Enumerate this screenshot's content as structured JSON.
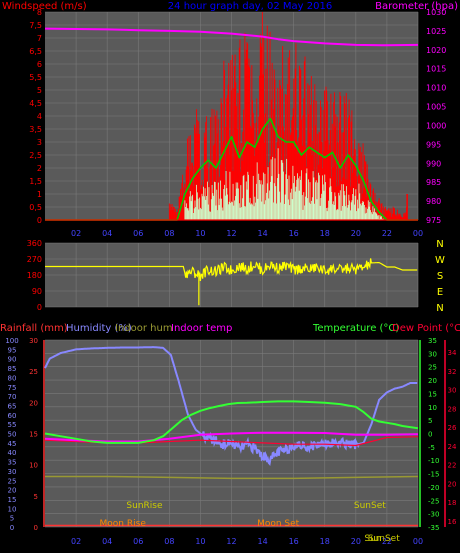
{
  "colors": {
    "background": "#000000",
    "plot_bg": "#5a5a5a",
    "grid": "#7a7a7a",
    "windspeed": "#ff0000",
    "gust": "#ff0000",
    "avg_wind": "#00cc00",
    "wind_light": "#ccffcc",
    "barometer": "#ff00ff",
    "direction": "#ffff00",
    "rainfall": "#ff3333",
    "humidity": "#8888ff",
    "indoor_hum": "#999933",
    "indoor_temp": "#ff00ff",
    "temperature": "#33ff33",
    "dew_point": "#ff0033",
    "title": "#0000ff",
    "astro": "#cccc00",
    "moon": "#ff8800",
    "x_ticks": "#4444ff"
  },
  "chart_data": [
    {
      "type": "line",
      "title": "24 hour graph day,  02 May 2016",
      "left_label": "Windspeed (m/s)",
      "right_label": "Barometer (hpa)",
      "x_ticks": [
        "02",
        "04",
        "06",
        "08",
        "10",
        "12",
        "14",
        "16",
        "18",
        "20",
        "22",
        "00"
      ],
      "y_left_ticks": [
        "8",
        "7,5",
        "7",
        "6,5",
        "6",
        "5,5",
        "5",
        "4,5",
        "4",
        "3,5",
        "3",
        "2,5",
        "2",
        "1,5",
        "1",
        "0,5",
        "0"
      ],
      "y_right_ticks": [
        "1030",
        "1025",
        "1020",
        "1015",
        "1010",
        "1005",
        "1000",
        "995",
        "990",
        "985",
        "980",
        "975"
      ],
      "ylim_left": [
        0,
        8
      ],
      "ylim_right": [
        975,
        1030
      ],
      "series": [
        {
          "name": "Barometer",
          "axis": "right",
          "color": "#ff00ff",
          "x": [
            0,
            2,
            4,
            6,
            8,
            10,
            12,
            14,
            15,
            16,
            18,
            20,
            22,
            24
          ],
          "values": [
            1025.6,
            1025.5,
            1025.4,
            1025.2,
            1025.0,
            1024.8,
            1024.3,
            1023.5,
            1022.8,
            1022.3,
            1021.7,
            1021.3,
            1021.2,
            1021.3
          ]
        },
        {
          "name": "Gust",
          "axis": "left",
          "color": "#ff0000",
          "x": [
            0,
            7.9,
            8.0,
            8.5,
            9.0,
            9.5,
            10.0,
            10.5,
            11.0,
            11.5,
            12.0,
            12.5,
            13.0,
            13.5,
            14.0,
            14.5,
            15.0,
            15.5,
            16.0,
            16.5,
            17.0,
            17.5,
            18.0,
            18.5,
            19.0,
            19.5,
            20.0,
            20.5,
            21.0,
            21.5,
            22.0,
            22.5,
            23.0,
            23.3,
            23.5,
            24
          ],
          "values": [
            0,
            0,
            0.6,
            0.5,
            2.4,
            4.7,
            3.5,
            4.0,
            4.2,
            6.0,
            6.5,
            7.0,
            7.2,
            5.0,
            8.0,
            6.6,
            7.0,
            5.5,
            6.5,
            6.0,
            5.4,
            5.2,
            4.6,
            5.5,
            4.6,
            4.4,
            4.0,
            2.7,
            1.5,
            0.8,
            0.4,
            0.5,
            0.1,
            1.0,
            0.2,
            0
          ]
        },
        {
          "name": "Wind Speed",
          "axis": "left",
          "color": "#00cc00",
          "x": [
            0,
            8.5,
            9.0,
            9.5,
            10.0,
            10.5,
            11.0,
            11.5,
            12.0,
            12.5,
            13.0,
            13.5,
            14.0,
            14.5,
            15.0,
            15.5,
            16.0,
            16.5,
            17.0,
            17.5,
            18.0,
            18.5,
            19.0,
            19.5,
            20.0,
            20.5,
            21.0,
            21.5,
            22.0,
            24
          ],
          "values": [
            0,
            0,
            1.0,
            1.6,
            2.0,
            2.3,
            2.0,
            2.6,
            3.2,
            2.4,
            3.0,
            2.8,
            3.5,
            3.9,
            3.2,
            3.0,
            3.0,
            2.5,
            2.8,
            2.6,
            2.4,
            2.6,
            2.0,
            2.5,
            2.1,
            1.5,
            0.7,
            0.3,
            0,
            0
          ]
        },
        {
          "name": "Wind Speed Light",
          "axis": "left",
          "color": "#ccffcc",
          "x": [
            0,
            8.5,
            9.0,
            9.5,
            10.0,
            10.5,
            11.0,
            11.5,
            12.0,
            12.5,
            13.0,
            13.5,
            14.0,
            14.5,
            15.0,
            15.5,
            16.0,
            16.5,
            17.0,
            17.5,
            18.0,
            18.5,
            19.0,
            19.5,
            20.0,
            20.5,
            21.0,
            21.5,
            22.0,
            24
          ],
          "values": [
            0,
            0,
            0.8,
            1.2,
            1.3,
            1.4,
            1.5,
            1.6,
            2.0,
            1.8,
            2.1,
            2.2,
            2.5,
            2.4,
            2.6,
            2.2,
            2.0,
            1.9,
            1.8,
            1.7,
            1.6,
            1.5,
            1.5,
            1.3,
            1.5,
            1.0,
            0.6,
            0.2,
            0,
            0
          ]
        }
      ]
    },
    {
      "type": "line",
      "side_labels": [
        "N",
        "W",
        "S",
        "E",
        "N"
      ],
      "y_ticks": [
        "360",
        "270",
        "180",
        "90",
        "0"
      ],
      "ylim": [
        0,
        360
      ],
      "series": [
        {
          "name": "Wind Direction",
          "color": "#ffff00",
          "x": [
            0,
            8.9,
            9.0,
            9.5,
            10.0,
            10.5,
            11.0,
            11.5,
            12.0,
            12.5,
            13.0,
            13.5,
            14.0,
            14.5,
            15.0,
            15.5,
            16.0,
            16.5,
            17.0,
            17.5,
            18.0,
            18.5,
            19.0,
            19.5,
            20.0,
            20.5,
            21.0,
            21.5,
            22.0,
            22.5,
            23.0,
            24
          ],
          "values": [
            228,
            228,
            190,
            198,
            176,
            210,
            198,
            222,
            206,
            230,
            214,
            240,
            205,
            238,
            218,
            232,
            208,
            218,
            212,
            222,
            204,
            216,
            208,
            218,
            212,
            222,
            248,
            250,
            225,
            225,
            208,
            208
          ]
        }
      ]
    },
    {
      "type": "line",
      "legend_left": [
        "Rainfall (mm)",
        "Humidity (%)",
        "Indoor hum",
        "Indoor temp"
      ],
      "legend_right": [
        "Temperature (°C)",
        "Dew Point (°C)"
      ],
      "x_ticks": [
        "02",
        "04",
        "06",
        "08",
        "10",
        "12",
        "14",
        "16",
        "18",
        "20",
        "22",
        "00"
      ],
      "y_humidity_ticks": [
        "100",
        "95",
        "90",
        "85",
        "80",
        "75",
        "70",
        "65",
        "60",
        "55",
        "50",
        "45",
        "40",
        "35",
        "30",
        "25",
        "20",
        "15",
        "10",
        "5",
        "0"
      ],
      "y_rain_ticks": [
        "30",
        "25",
        "20",
        "15",
        "10",
        "5",
        "0"
      ],
      "y_temp_ticks": [
        "35",
        "30",
        "25",
        "20",
        "15",
        "10",
        "5",
        "0",
        "-5",
        "-10",
        "-15",
        "-20",
        "-25",
        "-30",
        "-35"
      ],
      "y_dew_ticks": [
        "34",
        "32",
        "30",
        "28",
        "26",
        "24",
        "22",
        "20",
        "18",
        "16"
      ],
      "ylim_humidity": [
        0,
        100
      ],
      "ylim_temp": [
        -35,
        35
      ],
      "astro": [
        {
          "label": "SunRise",
          "color": "#cccc00",
          "x": 6.4
        },
        {
          "label": "SunSet",
          "color": "#cccc00",
          "x": 20.9
        },
        {
          "label": "Moon Rise",
          "color": "#ff8800",
          "x": 5.0
        },
        {
          "label": "Moon Set",
          "color": "#ff8800",
          "x": 15.0
        },
        {
          "label": "SunSet",
          "color": "#cccc00",
          "x": 21.8
        },
        {
          "label": "Sun",
          "color": "#cccc00",
          "x": 21.1
        }
      ],
      "series": [
        {
          "name": "Humidity",
          "axis": "humidity",
          "color": "#8888ff",
          "x": [
            0,
            0.3,
            1,
            2,
            3,
            4,
            5,
            6,
            7,
            7.6,
            8.1,
            8.6,
            9.2,
            9.7,
            10.3,
            11,
            11.5,
            12,
            12.5,
            13,
            13.5,
            14,
            14.5,
            15,
            15.5,
            16,
            17,
            18,
            19,
            20,
            20.5,
            21,
            21.5,
            22,
            22.5,
            23,
            23.5,
            24
          ],
          "values": [
            85,
            90,
            93,
            95,
            95.5,
            95.8,
            96,
            96,
            96.2,
            95.8,
            92,
            78,
            60,
            52,
            48,
            46,
            44,
            45,
            42,
            44,
            42,
            38,
            36,
            40,
            41,
            44,
            43,
            45,
            45,
            44,
            45,
            55,
            68,
            72,
            74,
            75,
            77,
            77
          ]
        },
        {
          "name": "Temperature",
          "axis": "temp",
          "color": "#33ff33",
          "x": [
            0,
            1,
            2,
            3,
            4,
            5,
            6,
            7,
            7.6,
            8.2,
            8.8,
            9.4,
            10,
            10.6,
            11.2,
            11.8,
            12.4,
            13,
            14,
            15,
            16,
            17,
            18,
            19,
            20,
            20.5,
            21,
            21.5,
            22,
            22.5,
            23,
            24
          ],
          "values": [
            0,
            -1,
            -2,
            -3,
            -3.5,
            -3.5,
            -3.5,
            -2.5,
            -1,
            2,
            5,
            7,
            8.5,
            9.5,
            10.3,
            11,
            11.4,
            11.5,
            11.8,
            12,
            12,
            11.8,
            11.5,
            11.0,
            10,
            8,
            5.5,
            4.5,
            4.0,
            3.5,
            2.8,
            2.0
          ]
        },
        {
          "name": "Indoor Temp",
          "axis": "temp",
          "color": "#ff00ff",
          "x": [
            0,
            2,
            4,
            6,
            8,
            10,
            12,
            14,
            16,
            18,
            20,
            22,
            24
          ],
          "values": [
            -2,
            -2.5,
            -3,
            -3,
            -2,
            -0.5,
            0,
            0.3,
            0.3,
            0.2,
            -0.5,
            -0.5,
            -0.3
          ]
        },
        {
          "name": "Dew Point",
          "axis": "temp",
          "color": "#ff0033",
          "x": [
            0,
            2,
            4,
            6,
            8,
            10,
            12,
            14,
            16,
            18,
            20,
            22,
            24
          ],
          "values": [
            -2.5,
            -3,
            -3.5,
            -3.5,
            -3,
            -2.5,
            -3,
            -3.5,
            -4,
            -4,
            -4.5,
            -1.5,
            -1.2
          ]
        },
        {
          "name": "Indoor Hum",
          "axis": "humidity",
          "color": "#999933",
          "x": [
            0,
            4,
            8,
            12,
            16,
            20,
            24
          ],
          "values": [
            27,
            27,
            26.5,
            26,
            26,
            26.5,
            27
          ]
        },
        {
          "name": "Rainfall",
          "axis": "humidity",
          "color": "#ff3333",
          "x": [
            0,
            24
          ],
          "values": [
            0,
            0
          ]
        }
      ]
    }
  ]
}
